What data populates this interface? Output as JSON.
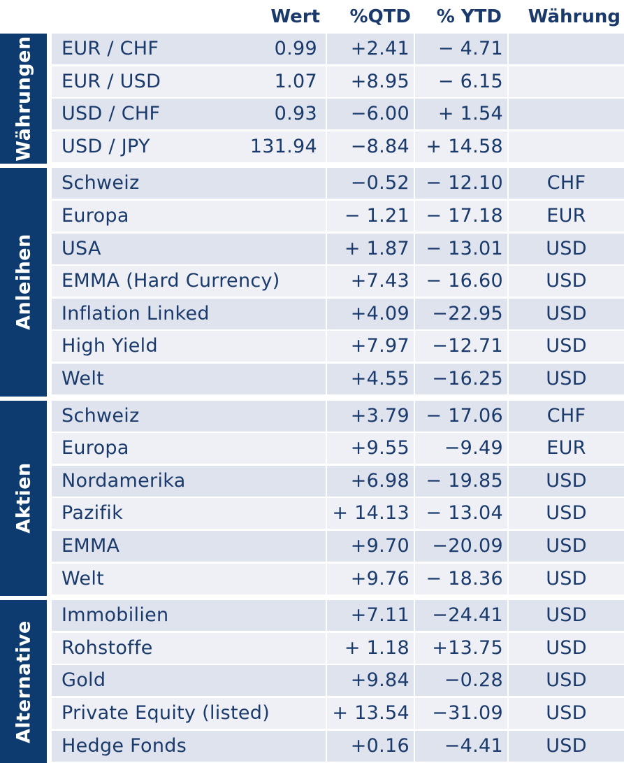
{
  "columns": {
    "wert": "Wert",
    "qtd": "%QTD",
    "ytd": "% YTD",
    "waehrung": "Währung"
  },
  "colors": {
    "tab": "#0d3b6f",
    "text": "#1a3a6b",
    "row_dark": "#dfe3ee",
    "row_light": "#eef0f6"
  },
  "groups": [
    {
      "label": "Währungen",
      "rows": [
        {
          "name": "EUR / CHF",
          "wert": "0.99",
          "qtd": "+2.41",
          "ytd": "− 4.71",
          "waehrung": ""
        },
        {
          "name": "EUR / USD",
          "wert": "1.07",
          "qtd": "+8.95",
          "ytd": "− 6.15",
          "waehrung": ""
        },
        {
          "name": "USD / CHF",
          "wert": "0.93",
          "qtd": "−6.00",
          "ytd": "+ 1.54",
          "waehrung": ""
        },
        {
          "name": "USD / JPY",
          "wert": "131.94",
          "qtd": "−8.84",
          "ytd": "+ 14.58",
          "waehrung": ""
        }
      ]
    },
    {
      "label": "Anleihen",
      "rows": [
        {
          "name": "Schweiz",
          "wert": "",
          "qtd": "−0.52",
          "ytd": "− 12.10",
          "waehrung": "CHF"
        },
        {
          "name": "Europa",
          "wert": "",
          "qtd": "− 1.21",
          "ytd": "− 17.18",
          "waehrung": "EUR"
        },
        {
          "name": "USA",
          "wert": "",
          "qtd": "+ 1.87",
          "ytd": "− 13.01",
          "waehrung": "USD"
        },
        {
          "name": "EMMA (Hard Currency)",
          "wert": "",
          "qtd": "+7.43",
          "ytd": "− 16.60",
          "waehrung": "USD"
        },
        {
          "name": "Inflation Linked",
          "wert": "",
          "qtd": "+4.09",
          "ytd": "−22.95",
          "waehrung": "USD"
        },
        {
          "name": "High Yield",
          "wert": "",
          "qtd": "+7.97",
          "ytd": "−12.71",
          "waehrung": "USD"
        },
        {
          "name": "Welt",
          "wert": "",
          "qtd": "+4.55",
          "ytd": "−16.25",
          "waehrung": "USD"
        }
      ]
    },
    {
      "label": "Aktien",
      "rows": [
        {
          "name": "Schweiz",
          "wert": "",
          "qtd": "+3.79",
          "ytd": "− 17.06",
          "waehrung": "CHF"
        },
        {
          "name": "Europa",
          "wert": "",
          "qtd": "+9.55",
          "ytd": "−9.49",
          "waehrung": "EUR"
        },
        {
          "name": "Nordamerika",
          "wert": "",
          "qtd": "+6.98",
          "ytd": "− 19.85",
          "waehrung": "USD"
        },
        {
          "name": "Pazifik",
          "wert": "",
          "qtd": "+ 14.13",
          "ytd": "− 13.04",
          "waehrung": "USD"
        },
        {
          "name": "EMMA",
          "wert": "",
          "qtd": "+9.70",
          "ytd": "−20.09",
          "waehrung": "USD"
        },
        {
          "name": "Welt",
          "wert": "",
          "qtd": "+9.76",
          "ytd": "− 18.36",
          "waehrung": "USD"
        }
      ]
    },
    {
      "label": "Alternative",
      "rows": [
        {
          "name": "Immobilien",
          "wert": "",
          "qtd": "+7.11",
          "ytd": "−24.41",
          "waehrung": "USD"
        },
        {
          "name": "Rohstoffe",
          "wert": "",
          "qtd": "+ 1.18",
          "ytd": "+13.75",
          "waehrung": "USD"
        },
        {
          "name": "Gold",
          "wert": "",
          "qtd": "+9.84",
          "ytd": "−0.28",
          "waehrung": "USD"
        },
        {
          "name": "Private Equity (listed)",
          "wert": "",
          "qtd": "+ 13.54",
          "ytd": "−31.09",
          "waehrung": "USD"
        },
        {
          "name": "Hedge Fonds",
          "wert": "",
          "qtd": "+0.16",
          "ytd": "−4.41",
          "waehrung": "USD"
        }
      ]
    }
  ]
}
